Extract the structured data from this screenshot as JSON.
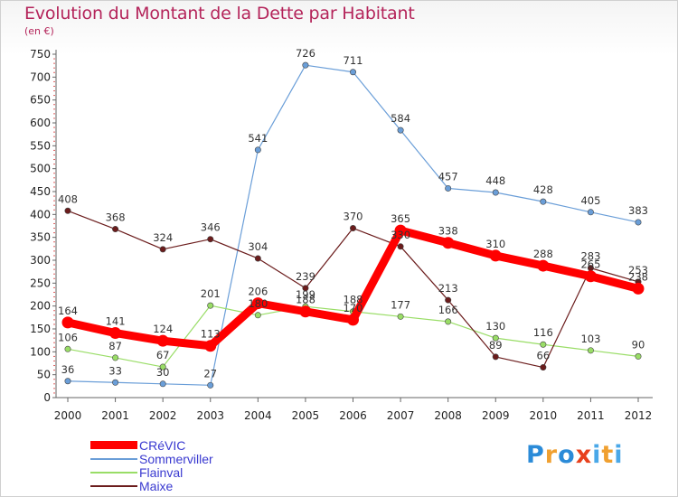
{
  "header": {
    "title": "Evolution du Montant de la Dette par Habitant",
    "subtitle": "(en €)"
  },
  "logo": {
    "letters": [
      "P",
      "r",
      "o",
      "x",
      "i",
      "t",
      "i"
    ],
    "colors": [
      "#2b8bd8",
      "#f0a030",
      "#2b8bd8",
      "#e8401c",
      "#4aa8e8",
      "#f0a030",
      "#4aa8e8"
    ]
  },
  "chart_data": {
    "type": "line",
    "title": "Evolution du Montant de la Dette par Habitant",
    "subtitle": "(en €)",
    "x": [
      "2000",
      "2001",
      "2002",
      "2003",
      "2004",
      "2005",
      "2006",
      "2007",
      "2008",
      "2009",
      "2010",
      "2011",
      "2012"
    ],
    "ylim": [
      0,
      750
    ],
    "yticks": [
      0,
      50,
      100,
      150,
      200,
      250,
      300,
      350,
      400,
      450,
      500,
      550,
      600,
      650,
      700,
      750
    ],
    "grid": false,
    "legend_position": "bottom-left",
    "series": [
      {
        "name": "CRéVIC",
        "color": "#ff0000",
        "emphasis": true,
        "values": [
          164,
          141,
          124,
          113,
          206,
          188,
          170,
          365,
          338,
          310,
          288,
          265,
          238
        ]
      },
      {
        "name": "Sommerviller",
        "color": "#6a9ed8",
        "emphasis": false,
        "values": [
          36,
          33,
          30,
          27,
          541,
          726,
          711,
          584,
          457,
          448,
          428,
          405,
          383
        ]
      },
      {
        "name": "Flainval",
        "color": "#99dd66",
        "emphasis": false,
        "values": [
          106,
          87,
          67,
          201,
          180,
          199,
          188,
          177,
          166,
          130,
          116,
          103,
          90
        ]
      },
      {
        "name": "Maixe",
        "color": "#6b1c1c",
        "emphasis": false,
        "values": [
          408,
          368,
          324,
          346,
          304,
          239,
          370,
          330,
          213,
          89,
          66,
          283,
          253
        ]
      }
    ]
  }
}
